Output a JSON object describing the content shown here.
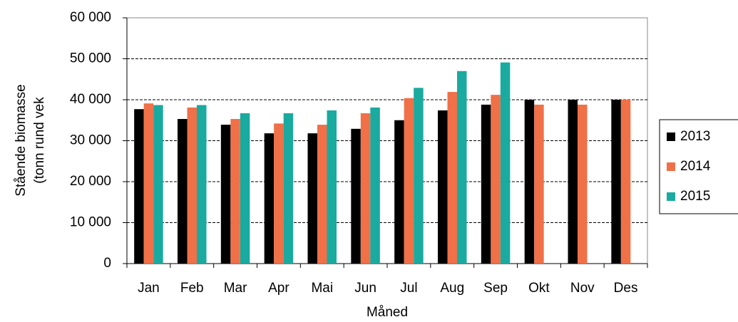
{
  "chart_data": {
    "type": "bar",
    "x_label": "Måned",
    "y_label": [
      "Stående biomasse",
      "(tonn rund vek"
    ],
    "categories": [
      "Jan",
      "Feb",
      "Mar",
      "Apr",
      "Mai",
      "Jun",
      "Jul",
      "Aug",
      "Sep",
      "Okt",
      "Nov",
      "Des"
    ],
    "series": [
      {
        "name": "2013",
        "color": "#000000",
        "values": [
          37700,
          35300,
          33900,
          31800,
          31800,
          32900,
          35000,
          37400,
          38800,
          40000,
          40000,
          40000
        ]
      },
      {
        "name": "2014",
        "color": "#f07048",
        "values": [
          39100,
          38100,
          35300,
          34200,
          33900,
          36700,
          40400,
          41900,
          41200,
          38800,
          38800,
          40000
        ]
      },
      {
        "name": "2015",
        "color": "#1aaa9f",
        "values": [
          38700,
          38700,
          36700,
          36700,
          37400,
          38100,
          42900,
          47000,
          49100,
          null,
          null,
          null
        ]
      }
    ],
    "ylim": [
      0,
      60000
    ],
    "yticks": [
      0,
      {
        "value": 10000,
        "label": "10 000"
      },
      {
        "value": 20000,
        "label": "20 000"
      },
      {
        "value": 30000,
        "label": "30 000"
      },
      {
        "value": 40000,
        "label": "40 000"
      },
      {
        "value": 50000,
        "label": "50 000"
      },
      {
        "value": 60000,
        "label": "60 000"
      }
    ],
    "grid": true,
    "legend": "right"
  }
}
